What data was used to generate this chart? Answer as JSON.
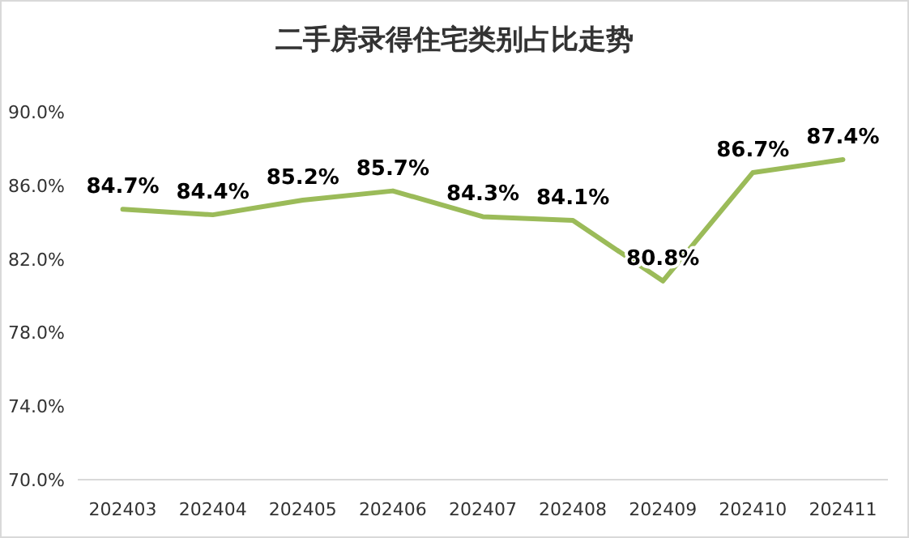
{
  "chart_data": {
    "type": "line",
    "title": "二手房录得住宅类别占比走势",
    "categories": [
      "202403",
      "202404",
      "202405",
      "202406",
      "202407",
      "202408",
      "202409",
      "202410",
      "202411"
    ],
    "values": [
      84.7,
      84.4,
      85.2,
      85.7,
      84.3,
      84.1,
      80.8,
      86.7,
      87.4
    ],
    "value_labels": [
      "84.7%",
      "84.4%",
      "85.2%",
      "85.7%",
      "84.3%",
      "84.1%",
      "80.8%",
      "86.7%",
      "87.4%"
    ],
    "color": "#9bbb59",
    "ylim": [
      70,
      90
    ],
    "yticks": [
      {
        "value": 70,
        "label": "70.0%"
      },
      {
        "value": 74,
        "label": "74.0%"
      },
      {
        "value": 78,
        "label": "78.0%"
      },
      {
        "value": 82,
        "label": "82.0%"
      },
      {
        "value": 86,
        "label": "86.0%"
      },
      {
        "value": 90,
        "label": "90.0%"
      }
    ],
    "marker": "none",
    "line_style": "solid",
    "legend": false,
    "grid": false
  }
}
